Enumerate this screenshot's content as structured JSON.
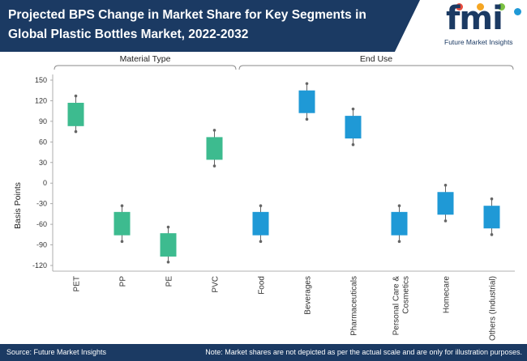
{
  "header": {
    "title": "Projected BPS Change in Market Share for Key Segments in Global Plastic Bottles Market, 2022-2032",
    "logo_word": "fmi",
    "logo_sub": "Future Market Insights"
  },
  "footer": {
    "source": "Source: Future Market Insights",
    "note": "Note: Market shares are not depicted as per the actual scale and are only for illustration purposes."
  },
  "colors": {
    "header_bg": "#1b3a63",
    "material_box": "#3dbb8f",
    "enduse_box": "#1f99d6",
    "whisker": "#666666"
  },
  "chart_data": {
    "type": "box",
    "title": "Projected BPS Change in Market Share for Key Segments in Global Plastic Bottles Market, 2022-2032",
    "ylabel": "Basis Points",
    "ylim": [
      -120,
      150
    ],
    "yticks": [
      150,
      120,
      90,
      60,
      30,
      0,
      -30,
      -60,
      -90,
      -120
    ],
    "groups": [
      {
        "name": "Material Type",
        "categories": [
          "PET",
          "PP",
          "PE",
          "PVC"
        ]
      },
      {
        "name": "End Use",
        "categories": [
          "Food",
          "Beverages",
          "Pharmaceuticals",
          "Personal Care & Cosmetics",
          "Homecare",
          "Others (Industrial)"
        ]
      }
    ],
    "series": [
      {
        "category": "PET",
        "group": "Material Type",
        "low": 75,
        "q1": 83,
        "q3": 117,
        "high": 127
      },
      {
        "category": "PP",
        "group": "Material Type",
        "low": -85,
        "q1": -76,
        "q3": -42,
        "high": -33
      },
      {
        "category": "PE",
        "group": "Material Type",
        "low": -115,
        "q1": -107,
        "q3": -73,
        "high": -64
      },
      {
        "category": "PVC",
        "group": "Material Type",
        "low": 25,
        "q1": 34,
        "q3": 67,
        "high": 77
      },
      {
        "category": "Food",
        "group": "End Use",
        "low": -85,
        "q1": -76,
        "q3": -42,
        "high": -33
      },
      {
        "category": "Beverages",
        "group": "End Use",
        "low": 93,
        "q1": 102,
        "q3": 135,
        "high": 145
      },
      {
        "category": "Pharmaceuticals",
        "group": "End Use",
        "low": 56,
        "q1": 65,
        "q3": 98,
        "high": 108
      },
      {
        "category": "Personal Care & Cosmetics",
        "group": "End Use",
        "low": -85,
        "q1": -76,
        "q3": -42,
        "high": -33
      },
      {
        "category": "Homecare",
        "group": "End Use",
        "low": -55,
        "q1": -46,
        "q3": -13,
        "high": -3
      },
      {
        "category": "Others (Industrial)",
        "group": "End Use",
        "low": -75,
        "q1": -66,
        "q3": -33,
        "high": -23
      }
    ],
    "category_labels": [
      [
        "PET"
      ],
      [
        "PP"
      ],
      [
        "PE"
      ],
      [
        "PVC"
      ],
      [
        "Food"
      ],
      [
        "Beverages"
      ],
      [
        "Pharmaceuticals"
      ],
      [
        "Personal Care &",
        "Cosmetics"
      ],
      [
        "Homecare"
      ],
      [
        "Others (Industrial)"
      ]
    ]
  }
}
